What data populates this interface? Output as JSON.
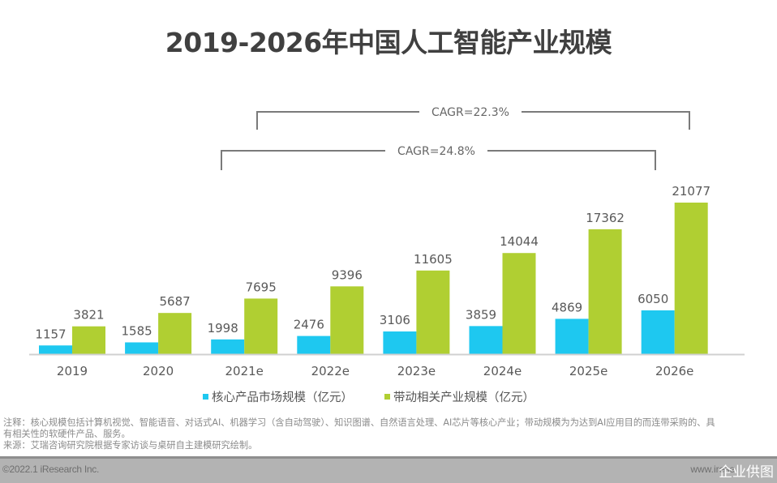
{
  "title": "2019-2026年中国人工智能产业规模",
  "colors": {
    "core": "#1ec8f0",
    "driven": "#b0cf32",
    "label": "#595959",
    "axis": "#d0d0d0",
    "bracket": "#7a7a7a"
  },
  "chart_data": {
    "type": "bar",
    "title": "2019-2026年中国人工智能产业规模",
    "xlabel": "",
    "ylabel": "",
    "ylim": [
      0,
      21077
    ],
    "grid": false,
    "legend_position": "bottom",
    "categories": [
      "2019",
      "2020",
      "2021e",
      "2022e",
      "2023e",
      "2024e",
      "2025e",
      "2026e"
    ],
    "series": [
      {
        "name": "核心产品市场规模（亿元）",
        "color": "#1ec8f0",
        "values": [
          1157,
          1585,
          1998,
          2476,
          3106,
          3859,
          4869,
          6050
        ]
      },
      {
        "name": "带动相关产业规模（亿元）",
        "color": "#b0cf32",
        "values": [
          3821,
          5687,
          7695,
          9396,
          11605,
          14044,
          17362,
          21077
        ]
      }
    ],
    "annotations": [
      {
        "text": "CAGR=22.3%",
        "from": "2021e",
        "to": "2026e",
        "series": "带动相关产业规模（亿元）"
      },
      {
        "text": "CAGR=24.8%",
        "from": "2021e",
        "to": "2026e",
        "series": "核心产品市场规模（亿元）"
      }
    ]
  },
  "legend": [
    {
      "label": "核心产品市场规模（亿元）",
      "color": "#1ec8f0"
    },
    {
      "label": "带动相关产业规模（亿元）",
      "color": "#b0cf32"
    }
  ],
  "notes": {
    "line1": "注释：核心规模包括计算机视觉、智能语音、对话式AI、机器学习（含自动驾驶）、知识图谱、自然语言处理、AI芯片等核心产业；带动规模为为达到AI应用目的而连带采购的、具",
    "line2": "有相关性的软硬件产品、服务。",
    "line3": "来源：艾瑞咨询研究院根据专家访谈与桌研自主建模研究绘制。"
  },
  "footer": {
    "copyright": "©2022.1 iResearch Inc.",
    "site": "www.irese",
    "watermark": "企业供图"
  }
}
